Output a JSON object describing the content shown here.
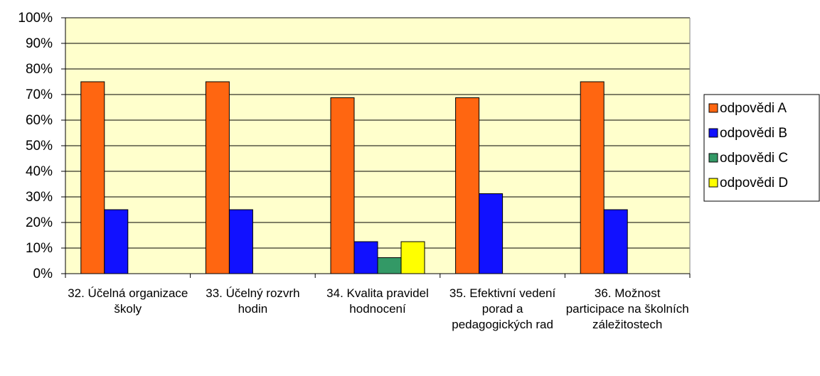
{
  "chart_data": {
    "type": "bar",
    "categories": [
      "32. Účelná organizace školy",
      "33. Účelný rozvrh hodin",
      "34. Kvalita pravidel hodnocení",
      "35. Efektivní vedení porad a pedagogických rad",
      "36. Možnost participace na školních záležitostech"
    ],
    "series": [
      {
        "name": "odpovědi A",
        "color": "#ff6611",
        "values": [
          75,
          75,
          68.75,
          68.75,
          75
        ]
      },
      {
        "name": "odpovědi B",
        "color": "#1111ff",
        "values": [
          25,
          25,
          12.5,
          31.25,
          25
        ]
      },
      {
        "name": "odpovědi C",
        "color": "#339966",
        "values": [
          0,
          0,
          6.25,
          0,
          0
        ]
      },
      {
        "name": "odpovědi D",
        "color": "#ffff00",
        "values": [
          0,
          0,
          12.5,
          0,
          0
        ]
      }
    ],
    "ylim": [
      0,
      100
    ],
    "yticks": [
      {
        "value": 0,
        "label": "0%"
      },
      {
        "value": 10,
        "label": "10%"
      },
      {
        "value": 20,
        "label": "20%"
      },
      {
        "value": 30,
        "label": "30%"
      },
      {
        "value": 40,
        "label": "40%"
      },
      {
        "value": 50,
        "label": "50%"
      },
      {
        "value": 60,
        "label": "60%"
      },
      {
        "value": 70,
        "label": "70%"
      },
      {
        "value": 80,
        "label": "80%"
      },
      {
        "value": 90,
        "label": "90%"
      },
      {
        "value": 100,
        "label": "100%"
      }
    ],
    "grid": true,
    "legend": "right"
  }
}
